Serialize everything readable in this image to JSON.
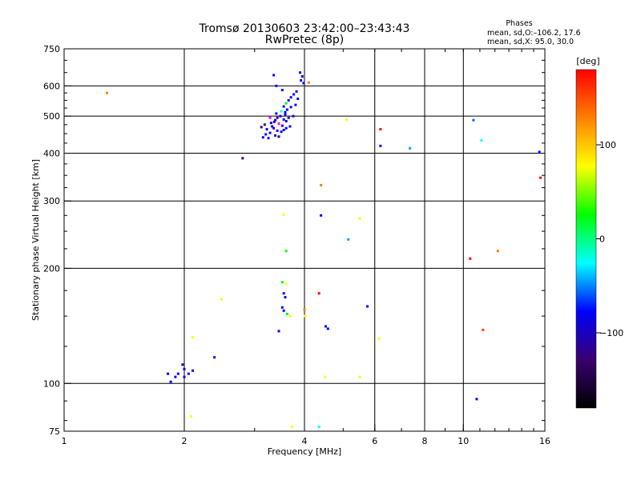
{
  "header": {
    "title_line1": "Tromsø 20130603 23:42:00–23:43:43",
    "title_line2": "RwPretec (8p)"
  },
  "stats": {
    "heading": "Phases",
    "line1": "mean, sd,O:–106.2, 17.6",
    "line2": "mean, sd,X:  95.0, 30.0"
  },
  "colorbar": {
    "unit_label": "[deg]",
    "range": [
      -180,
      180
    ],
    "ticks": [
      {
        "value": 100,
        "label": "100"
      },
      {
        "value": 0,
        "label": "0"
      },
      {
        "value": -100,
        "label": "−100"
      }
    ],
    "gradient_colors": [
      "#000000",
      "#3a0070",
      "#0000ff",
      "#00ffff",
      "#00ff00",
      "#ffff00",
      "#ff8000",
      "#ff0000"
    ]
  },
  "chart_data": {
    "type": "scatter",
    "title": "Tromsø 20130603 23:42:00–23:43:43",
    "subtitle": "RwPretec (8p)",
    "xlabel": "Frequency [MHz]",
    "ylabel": "Stationary phase Virtual Height [km]",
    "xscale": "log",
    "yscale": "log",
    "xlim": [
      1,
      16
    ],
    "ylim": [
      75,
      750
    ],
    "grid": true,
    "x_ticks": [
      {
        "value": 1,
        "label": "1"
      },
      {
        "value": 2,
        "label": "2"
      },
      {
        "value": 4,
        "label": "4"
      },
      {
        "value": 6,
        "label": "6"
      },
      {
        "value": 8,
        "label": "8"
      },
      {
        "value": 10,
        "label": "10"
      },
      {
        "value": 16,
        "label": "16"
      }
    ],
    "x_gridlines": [
      2,
      4,
      6,
      8,
      10
    ],
    "y_ticks": [
      {
        "value": 75,
        "label": "75"
      },
      {
        "value": 100,
        "label": "100"
      },
      {
        "value": 200,
        "label": "200"
      },
      {
        "value": 300,
        "label": "300"
      },
      {
        "value": 400,
        "label": "400"
      },
      {
        "value": 500,
        "label": "500"
      },
      {
        "value": 600,
        "label": "600"
      },
      {
        "value": 750,
        "label": "750"
      }
    ],
    "y_gridlines": [
      100,
      200,
      300,
      400,
      500,
      600
    ],
    "points": [
      {
        "x": 1.28,
        "y": 575,
        "color": "#ff8000"
      },
      {
        "x": 3.35,
        "y": 640,
        "color": "#0000ff"
      },
      {
        "x": 3.4,
        "y": 600,
        "color": "#0000ff"
      },
      {
        "x": 3.52,
        "y": 585,
        "color": "#0000ff"
      },
      {
        "x": 3.9,
        "y": 650,
        "color": "#0000ff"
      },
      {
        "x": 3.95,
        "y": 635,
        "color": "#0000ff"
      },
      {
        "x": 3.92,
        "y": 620,
        "color": "#0000ff"
      },
      {
        "x": 3.98,
        "y": 610,
        "color": "#0000ff"
      },
      {
        "x": 4.1,
        "y": 612,
        "color": "#ff8000"
      },
      {
        "x": 3.82,
        "y": 580,
        "color": "#0000ff"
      },
      {
        "x": 3.76,
        "y": 570,
        "color": "#0000ff"
      },
      {
        "x": 3.7,
        "y": 560,
        "color": "#0000ff"
      },
      {
        "x": 3.65,
        "y": 550,
        "color": "#0000ff"
      },
      {
        "x": 3.85,
        "y": 555,
        "color": "#0000ff"
      },
      {
        "x": 3.6,
        "y": 540,
        "color": "#00ff00"
      },
      {
        "x": 3.55,
        "y": 530,
        "color": "#0000ff"
      },
      {
        "x": 3.62,
        "y": 520,
        "color": "#0000ff"
      },
      {
        "x": 3.7,
        "y": 528,
        "color": "#0000ff"
      },
      {
        "x": 3.5,
        "y": 515,
        "color": "#00ffff"
      },
      {
        "x": 3.58,
        "y": 505,
        "color": "#0000ff"
      },
      {
        "x": 3.48,
        "y": 500,
        "color": "#0000ff"
      },
      {
        "x": 3.42,
        "y": 495,
        "color": "#3a0070"
      },
      {
        "x": 3.55,
        "y": 490,
        "color": "#0000ff"
      },
      {
        "x": 3.6,
        "y": 485,
        "color": "#0000ff"
      },
      {
        "x": 3.38,
        "y": 488,
        "color": "#0000ff"
      },
      {
        "x": 3.3,
        "y": 480,
        "color": "#0000ff"
      },
      {
        "x": 3.45,
        "y": 478,
        "color": "#ff00ff"
      },
      {
        "x": 3.52,
        "y": 472,
        "color": "#0000ff"
      },
      {
        "x": 3.18,
        "y": 475,
        "color": "#3a0070"
      },
      {
        "x": 3.12,
        "y": 468,
        "color": "#3a0070"
      },
      {
        "x": 3.22,
        "y": 462,
        "color": "#0000ff"
      },
      {
        "x": 3.35,
        "y": 465,
        "color": "#3a0070"
      },
      {
        "x": 3.42,
        "y": 458,
        "color": "#0000ff"
      },
      {
        "x": 3.5,
        "y": 455,
        "color": "#0000ff"
      },
      {
        "x": 3.28,
        "y": 452,
        "color": "#0000ff"
      },
      {
        "x": 3.2,
        "y": 448,
        "color": "#0000ff"
      },
      {
        "x": 3.38,
        "y": 445,
        "color": "#0000ff"
      },
      {
        "x": 3.15,
        "y": 440,
        "color": "#0000ff"
      },
      {
        "x": 3.25,
        "y": 438,
        "color": "#0000ff"
      },
      {
        "x": 3.45,
        "y": 442,
        "color": "#3a0070"
      },
      {
        "x": 3.6,
        "y": 465,
        "color": "#0000ff"
      },
      {
        "x": 3.68,
        "y": 470,
        "color": "#0000ff"
      },
      {
        "x": 3.75,
        "y": 500,
        "color": "#0000ff"
      },
      {
        "x": 3.8,
        "y": 535,
        "color": "#0000ff"
      },
      {
        "x": 3.58,
        "y": 512,
        "color": "#0000ff"
      },
      {
        "x": 3.32,
        "y": 470,
        "color": "#0000ff"
      },
      {
        "x": 3.36,
        "y": 483,
        "color": "#3a0070"
      },
      {
        "x": 3.28,
        "y": 495,
        "color": "#ff00ff"
      },
      {
        "x": 3.4,
        "y": 508,
        "color": "#0000ff"
      },
      {
        "x": 3.65,
        "y": 495,
        "color": "#0000ff"
      },
      {
        "x": 3.55,
        "y": 460,
        "color": "#0000ff"
      },
      {
        "x": 5.1,
        "y": 490,
        "color": "#ffff00"
      },
      {
        "x": 6.2,
        "y": 462,
        "color": "#ff0000"
      },
      {
        "x": 6.2,
        "y": 418,
        "color": "#0000ff"
      },
      {
        "x": 7.35,
        "y": 412,
        "color": "#00a0ff"
      },
      {
        "x": 10.6,
        "y": 488,
        "color": "#0060ff"
      },
      {
        "x": 11.1,
        "y": 432,
        "color": "#00ffff"
      },
      {
        "x": 15.5,
        "y": 403,
        "color": "#0000ff"
      },
      {
        "x": 15.6,
        "y": 345,
        "color": "#ff0000"
      },
      {
        "x": 2.8,
        "y": 388,
        "color": "#3a0070"
      },
      {
        "x": 4.4,
        "y": 330,
        "color": "#ff8000"
      },
      {
        "x": 4.4,
        "y": 275,
        "color": "#0000ff"
      },
      {
        "x": 3.55,
        "y": 276,
        "color": "#ffff00"
      },
      {
        "x": 5.5,
        "y": 270,
        "color": "#ffff00"
      },
      {
        "x": 5.15,
        "y": 238,
        "color": "#00a0ff"
      },
      {
        "x": 3.6,
        "y": 222,
        "color": "#00ff00"
      },
      {
        "x": 10.4,
        "y": 212,
        "color": "#ff0000"
      },
      {
        "x": 12.2,
        "y": 222,
        "color": "#ff8000"
      },
      {
        "x": 3.52,
        "y": 184,
        "color": "#00ff00"
      },
      {
        "x": 3.6,
        "y": 182,
        "color": "#ffff00"
      },
      {
        "x": 3.55,
        "y": 172,
        "color": "#0000ff"
      },
      {
        "x": 3.58,
        "y": 168,
        "color": "#0000ff"
      },
      {
        "x": 3.52,
        "y": 158,
        "color": "#0000ff"
      },
      {
        "x": 3.55,
        "y": 155,
        "color": "#0000ff"
      },
      {
        "x": 3.62,
        "y": 152,
        "color": "#00ff00"
      },
      {
        "x": 3.68,
        "y": 150,
        "color": "#ffff00"
      },
      {
        "x": 4.35,
        "y": 172,
        "color": "#ff0000"
      },
      {
        "x": 4.0,
        "y": 156,
        "color": "#ff8000"
      },
      {
        "x": 4.02,
        "y": 150,
        "color": "#ffff00"
      },
      {
        "x": 2.48,
        "y": 166,
        "color": "#ffff00"
      },
      {
        "x": 3.45,
        "y": 137,
        "color": "#0000ff"
      },
      {
        "x": 4.52,
        "y": 141,
        "color": "#0000ff"
      },
      {
        "x": 4.58,
        "y": 139,
        "color": "#0000ff"
      },
      {
        "x": 5.75,
        "y": 159,
        "color": "#0000ff"
      },
      {
        "x": 2.1,
        "y": 132,
        "color": "#ffff00"
      },
      {
        "x": 2.38,
        "y": 117,
        "color": "#0000ff"
      },
      {
        "x": 6.15,
        "y": 131,
        "color": "#ffff00"
      },
      {
        "x": 11.2,
        "y": 138,
        "color": "#ff4000"
      },
      {
        "x": 1.98,
        "y": 112,
        "color": "#0000ff"
      },
      {
        "x": 2.0,
        "y": 109,
        "color": "#0000ff"
      },
      {
        "x": 2.05,
        "y": 106,
        "color": "#0000ff"
      },
      {
        "x": 2.1,
        "y": 108,
        "color": "#0000ff"
      },
      {
        "x": 1.93,
        "y": 106,
        "color": "#0000ff"
      },
      {
        "x": 2.0,
        "y": 104,
        "color": "#0000ff"
      },
      {
        "x": 1.82,
        "y": 106,
        "color": "#0000ff"
      },
      {
        "x": 1.85,
        "y": 101,
        "color": "#0000ff"
      },
      {
        "x": 1.9,
        "y": 104,
        "color": "#0000ff"
      },
      {
        "x": 4.5,
        "y": 104,
        "color": "#ffff00"
      },
      {
        "x": 5.5,
        "y": 104,
        "color": "#ffff00"
      },
      {
        "x": 10.8,
        "y": 91,
        "color": "#0000ff"
      },
      {
        "x": 2.08,
        "y": 82,
        "color": "#ffff00"
      },
      {
        "x": 3.72,
        "y": 77,
        "color": "#ffff00"
      },
      {
        "x": 4.35,
        "y": 77,
        "color": "#00ffff"
      }
    ]
  }
}
